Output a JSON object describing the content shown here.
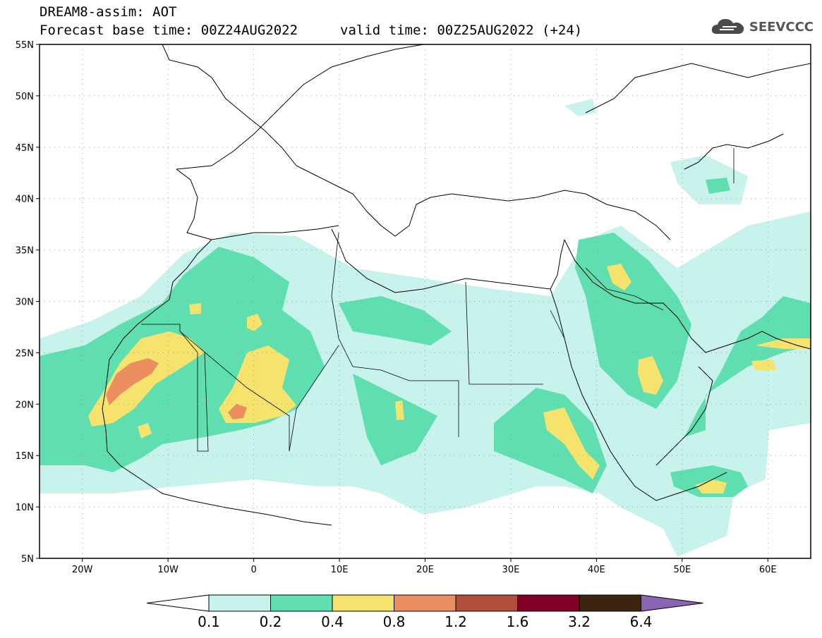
{
  "header": {
    "line1": "DREAM8-assim: AOT",
    "base_time": "Forecast base time: 00Z24AUG2022",
    "valid_time": "valid time: 00Z25AUG2022 (+24)"
  },
  "logo": {
    "text": "SEEVCCC",
    "icon": "cloud-icon"
  },
  "map": {
    "lat_labels": [
      "55N",
      "50N",
      "45N",
      "40N",
      "35N",
      "30N",
      "25N",
      "20N",
      "15N",
      "10N",
      "5N"
    ],
    "lon_labels": [
      "20W",
      "10W",
      "0",
      "10E",
      "20E",
      "30E",
      "40E",
      "50E",
      "60E"
    ],
    "extent": {
      "lon_min": -25,
      "lon_max": 65,
      "lat_min": 5,
      "lat_max": 55
    }
  },
  "colorbar": {
    "labels": [
      "0.1",
      "0.2",
      "0.4",
      "0.8",
      "1.2",
      "1.6",
      "3.2",
      "6.4"
    ],
    "colors": [
      "#c8f2ec",
      "#5fdeb0",
      "#f5e36e",
      "#eb8f60",
      "#b34e3c",
      "#820025",
      "#3d2410",
      "#8c64b4"
    ]
  }
}
